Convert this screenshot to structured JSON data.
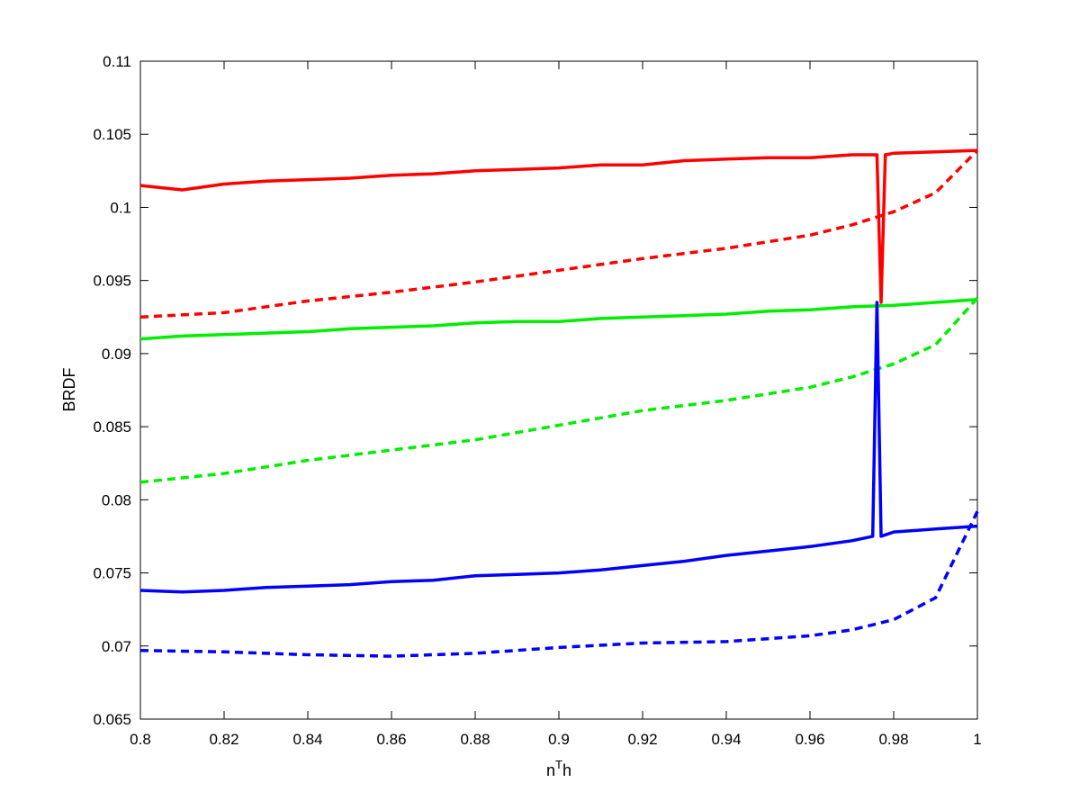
{
  "chart_data": {
    "type": "line",
    "title": "",
    "xlabel_base": "n",
    "xlabel_sup": "T",
    "xlabel_tail": "h",
    "ylabel": "BRDF",
    "xlim": [
      0.8,
      1.0
    ],
    "ylim": [
      0.065,
      0.11
    ],
    "grid": false,
    "legend": "none",
    "x_ticks": [
      "0.8",
      "0.82",
      "0.84",
      "0.86",
      "0.88",
      "0.9",
      "0.92",
      "0.94",
      "0.96",
      "0.98",
      "1"
    ],
    "y_ticks": [
      "0.065",
      "0.07",
      "0.075",
      "0.08",
      "0.085",
      "0.09",
      "0.095",
      "0.1",
      "0.105",
      "0.11"
    ],
    "series": [
      {
        "color": "#ff0000",
        "style": "solid",
        "x": [
          0.8,
          0.81,
          0.82,
          0.83,
          0.84,
          0.85,
          0.86,
          0.87,
          0.88,
          0.89,
          0.9,
          0.91,
          0.92,
          0.93,
          0.94,
          0.95,
          0.96,
          0.97,
          0.976,
          0.977,
          0.978,
          0.98,
          0.99,
          1.0
        ],
        "y": [
          0.1015,
          0.1012,
          0.1016,
          0.1018,
          0.1019,
          0.102,
          0.1022,
          0.1023,
          0.1025,
          0.1026,
          0.1027,
          0.1029,
          0.1029,
          0.1032,
          0.1033,
          0.1034,
          0.1034,
          0.1036,
          0.1036,
          0.0935,
          0.1036,
          0.1037,
          0.1038,
          0.1039
        ]
      },
      {
        "color": "#ff0000",
        "style": "dashed",
        "x": [
          0.8,
          0.82,
          0.84,
          0.86,
          0.88,
          0.9,
          0.92,
          0.94,
          0.96,
          0.97,
          0.98,
          0.99,
          1.0
        ],
        "y": [
          0.0925,
          0.0928,
          0.0936,
          0.0942,
          0.0949,
          0.0957,
          0.0965,
          0.0972,
          0.0981,
          0.0988,
          0.0997,
          0.101,
          0.1039
        ]
      },
      {
        "color": "#00ee00",
        "style": "solid",
        "x": [
          0.8,
          0.81,
          0.82,
          0.83,
          0.84,
          0.85,
          0.86,
          0.87,
          0.88,
          0.89,
          0.9,
          0.91,
          0.92,
          0.93,
          0.94,
          0.95,
          0.96,
          0.97,
          0.98,
          0.99,
          1.0
        ],
        "y": [
          0.091,
          0.0912,
          0.0913,
          0.0914,
          0.0915,
          0.0917,
          0.0918,
          0.0919,
          0.0921,
          0.0922,
          0.0922,
          0.0924,
          0.0925,
          0.0926,
          0.0927,
          0.0929,
          0.093,
          0.0932,
          0.0933,
          0.0935,
          0.0937
        ]
      },
      {
        "color": "#00ee00",
        "style": "dashed",
        "x": [
          0.8,
          0.82,
          0.84,
          0.86,
          0.88,
          0.9,
          0.92,
          0.94,
          0.96,
          0.97,
          0.98,
          0.99,
          1.0
        ],
        "y": [
          0.0812,
          0.0818,
          0.0827,
          0.0834,
          0.0841,
          0.0851,
          0.0861,
          0.0868,
          0.0877,
          0.0884,
          0.0893,
          0.0906,
          0.0938
        ]
      },
      {
        "color": "#0000ff",
        "style": "solid",
        "x": [
          0.8,
          0.81,
          0.82,
          0.83,
          0.84,
          0.85,
          0.86,
          0.87,
          0.88,
          0.89,
          0.9,
          0.91,
          0.92,
          0.93,
          0.94,
          0.95,
          0.96,
          0.97,
          0.975,
          0.976,
          0.977,
          0.978,
          0.98,
          0.99,
          1.0
        ],
        "y": [
          0.0738,
          0.0737,
          0.0738,
          0.074,
          0.0741,
          0.0742,
          0.0744,
          0.0745,
          0.0748,
          0.0749,
          0.075,
          0.0752,
          0.0755,
          0.0758,
          0.0762,
          0.0765,
          0.0768,
          0.0772,
          0.0775,
          0.0935,
          0.0775,
          0.0776,
          0.0778,
          0.078,
          0.0782
        ]
      },
      {
        "color": "#0000ff",
        "style": "dashed",
        "x": [
          0.8,
          0.82,
          0.84,
          0.86,
          0.88,
          0.9,
          0.92,
          0.94,
          0.96,
          0.97,
          0.98,
          0.99,
          1.0
        ],
        "y": [
          0.0697,
          0.0696,
          0.0694,
          0.0693,
          0.0695,
          0.0699,
          0.0702,
          0.0703,
          0.0707,
          0.0711,
          0.0718,
          0.0733,
          0.0792
        ]
      }
    ]
  }
}
